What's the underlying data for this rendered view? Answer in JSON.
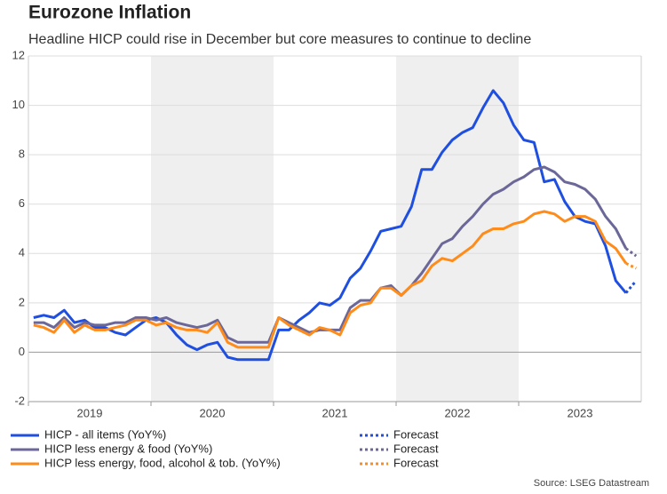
{
  "chart_data": {
    "type": "line",
    "title": "Eurozone Inflation",
    "subtitle": "Headline HICP could rise in December but core measures to continue to decline",
    "source": "Source: LSEG Datastream",
    "x": [
      0,
      1,
      2,
      3,
      4,
      5,
      6,
      7,
      8,
      9,
      10,
      11,
      12,
      13,
      14,
      15,
      16,
      17,
      18,
      19,
      20,
      21,
      22,
      23,
      24,
      25,
      26,
      27,
      28,
      29,
      30,
      31,
      32,
      33,
      34,
      35,
      36,
      37,
      38,
      39,
      40,
      41,
      42,
      43,
      44,
      45,
      46,
      47,
      48,
      49,
      50,
      51,
      52,
      53,
      54,
      55,
      56,
      57,
      58,
      59
    ],
    "xlim": [
      -0.5,
      59.5
    ],
    "xticks": [
      {
        "value": 5.5,
        "label": "2019"
      },
      {
        "value": 17.5,
        "label": "2020"
      },
      {
        "value": 29.5,
        "label": "2021"
      },
      {
        "value": 41.5,
        "label": "2022"
      },
      {
        "value": 53.5,
        "label": "2023"
      }
    ],
    "ylim": [
      -2,
      12
    ],
    "yticks": [
      -2,
      0,
      2,
      4,
      6,
      8,
      10,
      12
    ],
    "grid": true,
    "shade_alternate_years": true,
    "series": [
      {
        "name": "HICP - all items (YoY%)",
        "color": "#1f4fe0",
        "dashed": false,
        "values": [
          1.4,
          1.5,
          1.4,
          1.7,
          1.2,
          1.3,
          1.0,
          1.0,
          0.8,
          0.7,
          1.0,
          1.3,
          1.4,
          1.2,
          0.7,
          0.3,
          0.1,
          0.3,
          0.4,
          -0.2,
          -0.3,
          -0.3,
          -0.3,
          -0.3,
          0.9,
          0.9,
          1.3,
          1.6,
          2.0,
          1.9,
          2.2,
          3.0,
          3.4,
          4.1,
          4.9,
          5.0,
          5.1,
          5.9,
          7.4,
          7.4,
          8.1,
          8.6,
          8.9,
          9.1,
          9.9,
          10.6,
          10.1,
          9.2,
          8.6,
          8.5,
          6.9,
          7.0,
          6.1,
          5.5,
          5.3,
          5.2,
          4.3,
          2.9,
          2.4,
          null
        ]
      },
      {
        "name": "Forecast",
        "color": "#1f4fe0",
        "dashed": true,
        "values": [
          null,
          null,
          null,
          null,
          null,
          null,
          null,
          null,
          null,
          null,
          null,
          null,
          null,
          null,
          null,
          null,
          null,
          null,
          null,
          null,
          null,
          null,
          null,
          null,
          null,
          null,
          null,
          null,
          null,
          null,
          null,
          null,
          null,
          null,
          null,
          null,
          null,
          null,
          null,
          null,
          null,
          null,
          null,
          null,
          null,
          null,
          null,
          null,
          null,
          null,
          null,
          null,
          null,
          null,
          null,
          null,
          null,
          null,
          2.4,
          2.9
        ]
      },
      {
        "name": "HICP less energy & food (YoY%)",
        "color": "#6b6899",
        "dashed": false,
        "values": [
          1.2,
          1.2,
          1.0,
          1.4,
          1.0,
          1.2,
          1.1,
          1.1,
          1.2,
          1.2,
          1.4,
          1.4,
          1.3,
          1.4,
          1.2,
          1.1,
          1.0,
          1.1,
          1.3,
          0.6,
          0.4,
          0.4,
          0.4,
          0.4,
          1.4,
          1.2,
          1.0,
          0.8,
          0.9,
          0.9,
          0.9,
          1.8,
          2.1,
          2.1,
          2.6,
          2.7,
          2.3,
          2.7,
          3.2,
          3.8,
          4.4,
          4.6,
          5.1,
          5.5,
          6.0,
          6.4,
          6.6,
          6.9,
          7.1,
          7.4,
          7.5,
          7.3,
          6.9,
          6.8,
          6.6,
          6.2,
          5.5,
          5.0,
          4.2,
          null
        ]
      },
      {
        "name": "Forecast",
        "color": "#6b6899",
        "dashed": true,
        "values": [
          null,
          null,
          null,
          null,
          null,
          null,
          null,
          null,
          null,
          null,
          null,
          null,
          null,
          null,
          null,
          null,
          null,
          null,
          null,
          null,
          null,
          null,
          null,
          null,
          null,
          null,
          null,
          null,
          null,
          null,
          null,
          null,
          null,
          null,
          null,
          null,
          null,
          null,
          null,
          null,
          null,
          null,
          null,
          null,
          null,
          null,
          null,
          null,
          null,
          null,
          null,
          null,
          null,
          null,
          null,
          null,
          null,
          null,
          4.2,
          3.9
        ]
      },
      {
        "name": "HICP less energy, food, alcohol & tob. (YoY%)",
        "color": "#ff8c1a",
        "dashed": false,
        "values": [
          1.1,
          1.0,
          0.8,
          1.3,
          0.8,
          1.1,
          0.9,
          0.9,
          1.0,
          1.1,
          1.3,
          1.3,
          1.1,
          1.2,
          1.0,
          0.9,
          0.9,
          0.8,
          1.2,
          0.4,
          0.2,
          0.2,
          0.2,
          0.2,
          1.4,
          1.1,
          0.9,
          0.7,
          1.0,
          0.9,
          0.7,
          1.6,
          1.9,
          2.0,
          2.6,
          2.6,
          2.3,
          2.7,
          2.9,
          3.5,
          3.8,
          3.7,
          4.0,
          4.3,
          4.8,
          5.0,
          5.0,
          5.2,
          5.3,
          5.6,
          5.7,
          5.6,
          5.3,
          5.5,
          5.5,
          5.3,
          4.5,
          4.2,
          3.6,
          null
        ]
      },
      {
        "name": "Forecast",
        "color": "#ff8c1a",
        "dashed": true,
        "values": [
          null,
          null,
          null,
          null,
          null,
          null,
          null,
          null,
          null,
          null,
          null,
          null,
          null,
          null,
          null,
          null,
          null,
          null,
          null,
          null,
          null,
          null,
          null,
          null,
          null,
          null,
          null,
          null,
          null,
          null,
          null,
          null,
          null,
          null,
          null,
          null,
          null,
          null,
          null,
          null,
          null,
          null,
          null,
          null,
          null,
          null,
          null,
          null,
          null,
          null,
          null,
          null,
          null,
          null,
          null,
          null,
          null,
          null,
          3.6,
          3.4
        ]
      }
    ]
  }
}
